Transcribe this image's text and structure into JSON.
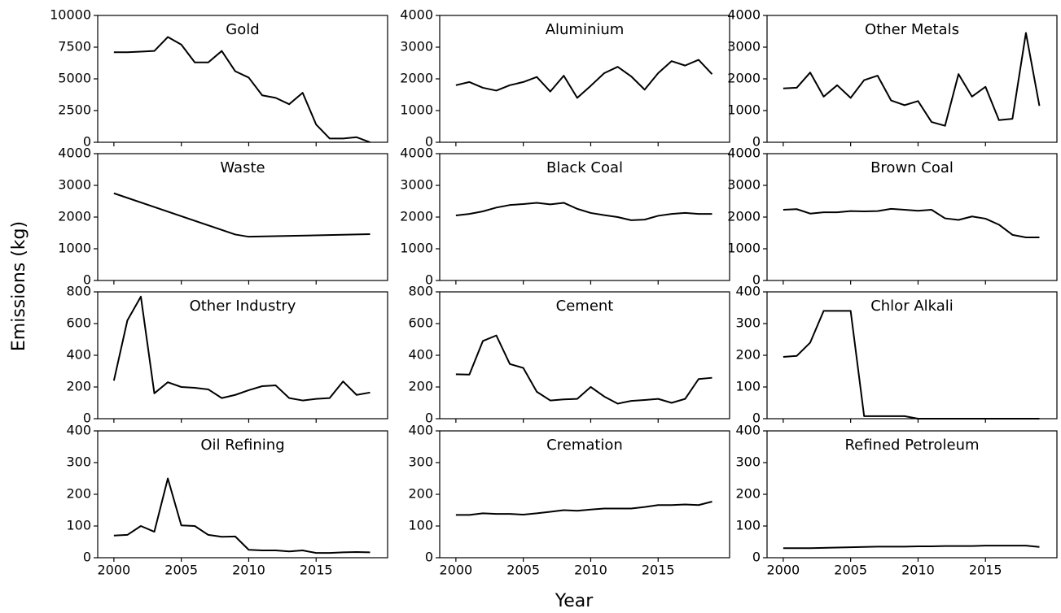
{
  "xlabel": "Year",
  "ylabel": "Emissions (kg)",
  "chart_data": [
    {
      "type": "line",
      "title": "Gold",
      "color": "#000000",
      "x": [
        2000,
        2001,
        2002,
        2003,
        2004,
        2005,
        2006,
        2007,
        2008,
        2009,
        2010,
        2011,
        2012,
        2013,
        2014,
        2015,
        2016,
        2017,
        2018,
        2019
      ],
      "values": [
        7100,
        7100,
        7150,
        7200,
        8300,
        7700,
        6300,
        6300,
        7200,
        5600,
        5100,
        3700,
        3500,
        3000,
        3900,
        1400,
        300,
        300,
        400,
        0
      ],
      "xlim": [
        1998.8,
        2020.3
      ],
      "xticks": [
        2000,
        2005,
        2010,
        2015
      ],
      "ylim": [
        0,
        10000
      ],
      "yticks": [
        0,
        2500,
        5000,
        7500,
        10000
      ]
    },
    {
      "type": "line",
      "title": "Aluminium",
      "color": "#000000",
      "x": [
        2000,
        2001,
        2002,
        2003,
        2004,
        2005,
        2006,
        2007,
        2008,
        2009,
        2010,
        2011,
        2012,
        2013,
        2014,
        2015,
        2016,
        2017,
        2018,
        2019
      ],
      "values": [
        1800,
        1900,
        1720,
        1630,
        1800,
        1900,
        2060,
        1600,
        2100,
        1400,
        1780,
        2180,
        2380,
        2080,
        1660,
        2180,
        2560,
        2420,
        2600,
        2150
      ],
      "xlim": [
        1998.8,
        2020.3
      ],
      "xticks": [
        2000,
        2005,
        2010,
        2015
      ],
      "ylim": [
        0,
        4000
      ],
      "yticks": [
        0,
        1000,
        2000,
        3000,
        4000
      ]
    },
    {
      "type": "line",
      "title": "Other Metals",
      "color": "#000000",
      "x": [
        2000,
        2001,
        2002,
        2003,
        2004,
        2005,
        2006,
        2007,
        2008,
        2009,
        2010,
        2011,
        2012,
        2013,
        2014,
        2015,
        2016,
        2017,
        2018,
        2019
      ],
      "values": [
        1700,
        1720,
        2200,
        1440,
        1800,
        1400,
        1960,
        2100,
        1320,
        1170,
        1300,
        640,
        520,
        2150,
        1440,
        1750,
        700,
        740,
        3450,
        1150
      ],
      "xlim": [
        1998.8,
        2020.3
      ],
      "xticks": [
        2000,
        2005,
        2010,
        2015
      ],
      "ylim": [
        0,
        4000
      ],
      "yticks": [
        0,
        1000,
        2000,
        3000,
        4000
      ]
    },
    {
      "type": "line",
      "title": "Waste",
      "color": "#000000",
      "x": [
        2000,
        2009,
        2010,
        2019
      ],
      "values": [
        2750,
        1450,
        1380,
        1460
      ],
      "xlim": [
        1998.8,
        2020.3
      ],
      "xticks": [
        2000,
        2005,
        2010,
        2015
      ],
      "ylim": [
        0,
        4000
      ],
      "yticks": [
        0,
        1000,
        2000,
        3000,
        4000
      ]
    },
    {
      "type": "line",
      "title": "Black Coal",
      "color": "#000000",
      "x": [
        2000,
        2001,
        2002,
        2003,
        2004,
        2005,
        2006,
        2007,
        2008,
        2009,
        2010,
        2011,
        2012,
        2013,
        2014,
        2015,
        2016,
        2017,
        2018,
        2019
      ],
      "values": [
        2050,
        2100,
        2180,
        2300,
        2380,
        2410,
        2450,
        2400,
        2450,
        2260,
        2130,
        2060,
        2000,
        1900,
        1920,
        2040,
        2100,
        2130,
        2100,
        2100
      ],
      "xlim": [
        1998.8,
        2020.3
      ],
      "xticks": [
        2000,
        2005,
        2010,
        2015
      ],
      "ylim": [
        0,
        4000
      ],
      "yticks": [
        0,
        1000,
        2000,
        3000,
        4000
      ]
    },
    {
      "type": "line",
      "title": "Brown Coal",
      "color": "#000000",
      "x": [
        2000,
        2001,
        2002,
        2003,
        2004,
        2005,
        2006,
        2007,
        2008,
        2009,
        2010,
        2011,
        2012,
        2013,
        2014,
        2015,
        2016,
        2017,
        2018,
        2019
      ],
      "values": [
        2230,
        2250,
        2110,
        2150,
        2150,
        2190,
        2180,
        2190,
        2260,
        2230,
        2200,
        2230,
        1960,
        1910,
        2020,
        1950,
        1760,
        1440,
        1360,
        1360
      ],
      "xlim": [
        1998.8,
        2020.3
      ],
      "xticks": [
        2000,
        2005,
        2010,
        2015
      ],
      "ylim": [
        0,
        4000
      ],
      "yticks": [
        0,
        1000,
        2000,
        3000,
        4000
      ]
    },
    {
      "type": "line",
      "title": "Other Industry",
      "color": "#000000",
      "x": [
        2000,
        2001,
        2002,
        2003,
        2004,
        2005,
        2006,
        2007,
        2008,
        2009,
        2010,
        2011,
        2012,
        2013,
        2014,
        2015,
        2016,
        2017,
        2018,
        2019
      ],
      "values": [
        240,
        620,
        770,
        160,
        230,
        200,
        195,
        185,
        130,
        150,
        180,
        205,
        210,
        130,
        115,
        125,
        130,
        235,
        150,
        165
      ],
      "xlim": [
        1998.8,
        2020.3
      ],
      "xticks": [
        2000,
        2005,
        2010,
        2015
      ],
      "ylim": [
        0,
        800
      ],
      "yticks": [
        0,
        200,
        400,
        600,
        800
      ]
    },
    {
      "type": "line",
      "title": "Cement",
      "color": "#000000",
      "x": [
        2000,
        2001,
        2002,
        2003,
        2004,
        2005,
        2006,
        2007,
        2008,
        2009,
        2010,
        2011,
        2012,
        2013,
        2014,
        2015,
        2016,
        2017,
        2018,
        2019
      ],
      "values": [
        280,
        278,
        490,
        525,
        345,
        320,
        170,
        115,
        122,
        125,
        200,
        140,
        95,
        112,
        118,
        125,
        100,
        125,
        250,
        258
      ],
      "xlim": [
        1998.8,
        2020.3
      ],
      "xticks": [
        2000,
        2005,
        2010,
        2015
      ],
      "ylim": [
        0,
        800
      ],
      "yticks": [
        0,
        200,
        400,
        600,
        800
      ]
    },
    {
      "type": "line",
      "title": "Chlor Alkali",
      "color": "#000000",
      "x": [
        2000,
        2001,
        2002,
        2003,
        2004,
        2005,
        2006,
        2007,
        2008,
        2009,
        2010,
        2011,
        2012,
        2013,
        2014,
        2015,
        2016,
        2017,
        2018,
        2019
      ],
      "values": [
        195,
        198,
        240,
        340,
        340,
        340,
        8,
        8,
        8,
        8,
        0,
        0,
        0,
        0,
        0,
        0,
        0,
        0,
        0,
        0
      ],
      "xlim": [
        1998.8,
        2020.3
      ],
      "xticks": [
        2000,
        2005,
        2010,
        2015
      ],
      "ylim": [
        0,
        400
      ],
      "yticks": [
        0,
        100,
        200,
        300,
        400
      ]
    },
    {
      "type": "line",
      "title": "Oil Refining",
      "color": "#000000",
      "x": [
        2000,
        2001,
        2002,
        2003,
        2004,
        2005,
        2006,
        2007,
        2008,
        2009,
        2010,
        2011,
        2012,
        2013,
        2014,
        2015,
        2016,
        2017,
        2018,
        2019
      ],
      "values": [
        70,
        72,
        100,
        82,
        250,
        102,
        100,
        72,
        66,
        67,
        25,
        23,
        23,
        20,
        23,
        15,
        15,
        17,
        18,
        17
      ],
      "xlim": [
        1998.8,
        2020.3
      ],
      "xticks": [
        2000,
        2005,
        2010,
        2015
      ],
      "ylim": [
        0,
        400
      ],
      "yticks": [
        0,
        100,
        200,
        300,
        400
      ]
    },
    {
      "type": "line",
      "title": "Cremation",
      "color": "#000000",
      "x": [
        2000,
        2001,
        2002,
        2003,
        2004,
        2005,
        2006,
        2007,
        2008,
        2009,
        2010,
        2011,
        2012,
        2013,
        2014,
        2015,
        2016,
        2017,
        2018,
        2019
      ],
      "values": [
        135,
        135,
        140,
        138,
        138,
        136,
        140,
        145,
        150,
        148,
        152,
        155,
        155,
        155,
        160,
        166,
        166,
        168,
        166,
        177
      ],
      "xlim": [
        1998.8,
        2020.3
      ],
      "xticks": [
        2000,
        2005,
        2010,
        2015
      ],
      "ylim": [
        0,
        400
      ],
      "yticks": [
        0,
        100,
        200,
        300,
        400
      ]
    },
    {
      "type": "line",
      "title": "Refined Petroleum",
      "color": "#000000",
      "x": [
        2000,
        2001,
        2002,
        2003,
        2004,
        2005,
        2006,
        2007,
        2008,
        2009,
        2010,
        2011,
        2012,
        2013,
        2014,
        2015,
        2016,
        2017,
        2018,
        2019
      ],
      "values": [
        30,
        30,
        30,
        31,
        32,
        33,
        34,
        35,
        35,
        35,
        36,
        36,
        37,
        37,
        37,
        38,
        38,
        38,
        38,
        34
      ],
      "xlim": [
        1998.8,
        2020.3
      ],
      "xticks": [
        2000,
        2005,
        2010,
        2015
      ],
      "ylim": [
        0,
        400
      ],
      "yticks": [
        0,
        100,
        200,
        300,
        400
      ]
    }
  ]
}
